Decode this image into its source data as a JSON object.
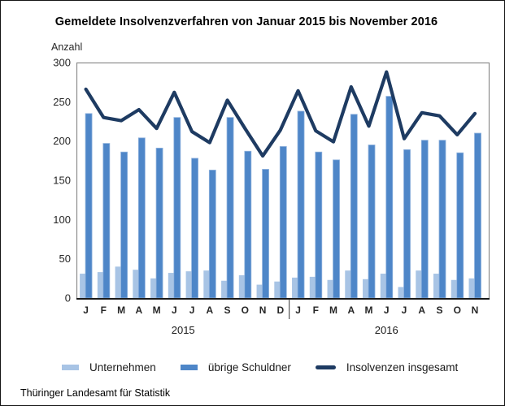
{
  "footer": {
    "source": "Thüringer Landesamt für Statistik"
  },
  "chart_data": {
    "type": "bar+line",
    "title": "Gemeldete Insolvenzverfahren von Januar 2015 bis November 2016",
    "ylabel": "Anzahl",
    "ylim": [
      0,
      300
    ],
    "yticks": [
      300,
      250,
      200,
      150,
      100,
      50,
      0
    ],
    "grid": false,
    "legend_position": "bottom",
    "groups": [
      {
        "year": "2015",
        "months": [
          "J",
          "F",
          "M",
          "A",
          "M",
          "J",
          "J",
          "A",
          "S",
          "O",
          "N",
          "D"
        ]
      },
      {
        "year": "2016",
        "months": [
          "J",
          "F",
          "M",
          "A",
          "M",
          "J",
          "J",
          "A",
          "S",
          "O",
          "N"
        ]
      }
    ],
    "series": [
      {
        "name": "Unternehmen",
        "type": "bar",
        "color": "#A8C4E5",
        "values": [
          31,
          33,
          40,
          36,
          25,
          32,
          34,
          35,
          22,
          29,
          17,
          21,
          26,
          27,
          23,
          35,
          24,
          31,
          14,
          35,
          31,
          23,
          25
        ]
      },
      {
        "name": "übrige Schuldner",
        "type": "bar",
        "color": "#4E86C8",
        "values": [
          235,
          197,
          186,
          204,
          191,
          230,
          178,
          163,
          230,
          187,
          164,
          193,
          238,
          186,
          176,
          234,
          195,
          257,
          189,
          201,
          201,
          185,
          210
        ]
      },
      {
        "name": "Insolvenzen insgesamt",
        "type": "line",
        "color": "#1E3B62",
        "values": [
          266,
          230,
          226,
          240,
          216,
          262,
          212,
          198,
          252,
          216,
          181,
          214,
          264,
          213,
          199,
          269,
          219,
          288,
          203,
          236,
          232,
          208,
          235
        ]
      }
    ],
    "axis_colors": {
      "plot_border": "#8C8C8C",
      "axis_line": "#1a1a1a",
      "tick_text": "#262626"
    }
  }
}
